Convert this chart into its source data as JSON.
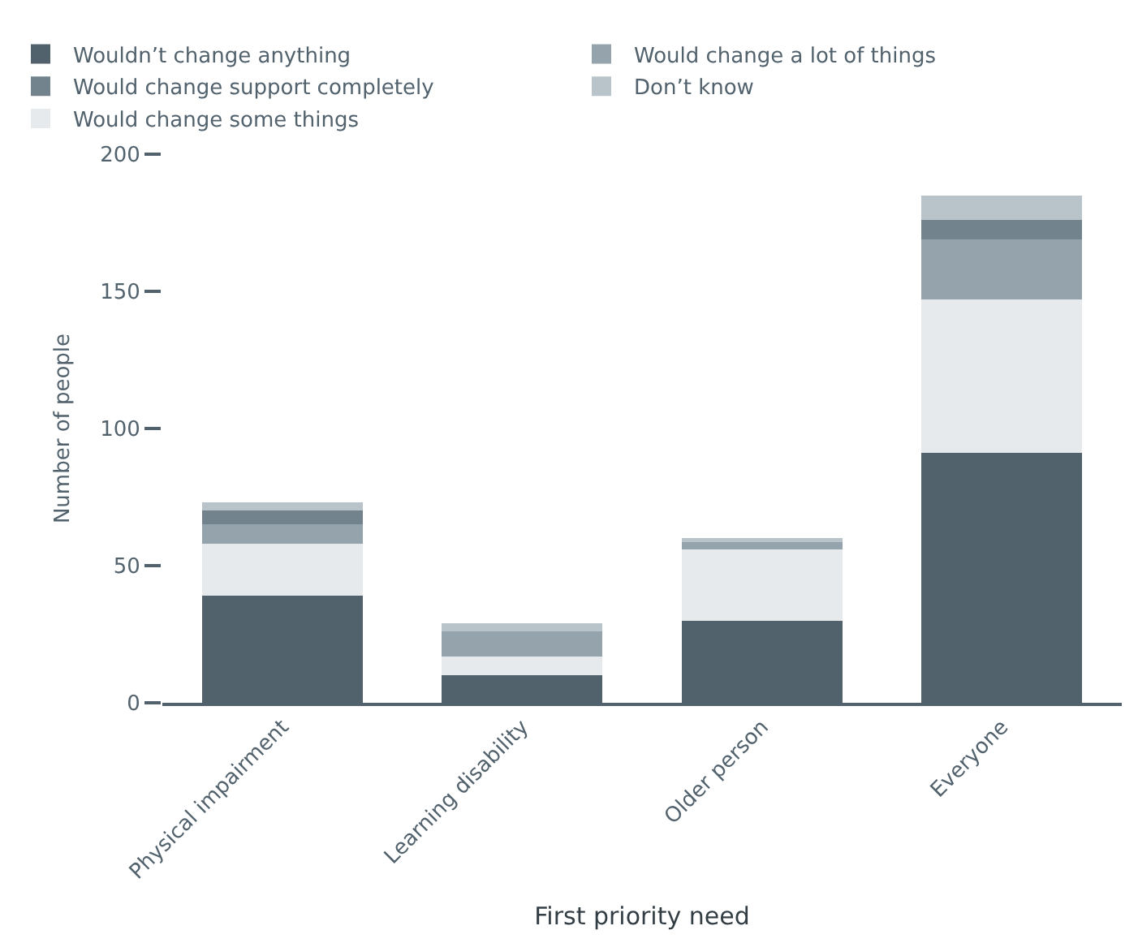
{
  "chart_data": {
    "type": "bar",
    "stacked": true,
    "xlabel": "First priority need",
    "ylabel": "Number of people",
    "categories": [
      "Physical impairment",
      "Learning disability",
      "Older person",
      "Everyone"
    ],
    "series": [
      {
        "name": "Wouldn’t change anything",
        "color": "#52626d",
        "values": [
          39,
          10,
          30,
          91
        ]
      },
      {
        "name": "Would change some things",
        "color": "#e6eaed",
        "values": [
          19,
          7,
          26,
          56
        ]
      },
      {
        "name": "Would change a lot of things",
        "color": "#95a3ac",
        "values": [
          7,
          9,
          3,
          22
        ]
      },
      {
        "name": "Would change support completely",
        "color": "#73838d",
        "values": [
          5,
          0,
          0,
          7
        ]
      },
      {
        "name": "Don’t know",
        "color": "#b9c4ca",
        "values": [
          3,
          3,
          1,
          9
        ]
      }
    ],
    "ylim": [
      0,
      200
    ],
    "yticks": [
      0,
      50,
      100,
      150,
      200
    ],
    "legend": "top left"
  }
}
